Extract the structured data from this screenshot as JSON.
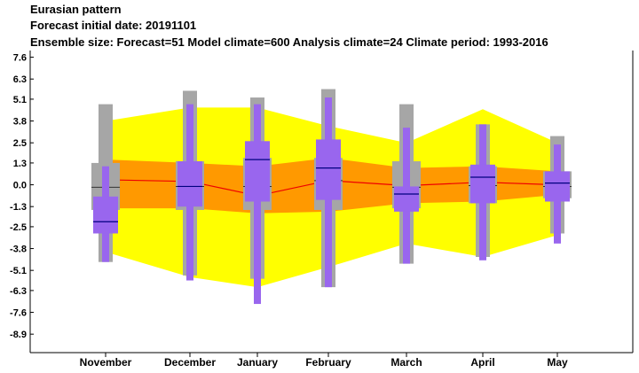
{
  "header": {
    "title": "Eurasian pattern",
    "init_line": " Forecast initial date: 20191101",
    "ensemble_line": "Ensemble size: Forecast=51 Model climate=600 Analysis climate=24   Climate period: 1993-2016"
  },
  "colors": {
    "clim_outer": "#ffff00",
    "clim_inner": "#ff9900",
    "model_whisker": "#a6a6a6",
    "forecast_box": "#9966ee",
    "median_line": "#000080",
    "clim_median_line": "#ee0000"
  },
  "chart_data": {
    "type": "box",
    "categories": [
      "November",
      "December",
      "January",
      "February",
      "March",
      "April",
      "May"
    ],
    "ylim": [
      -10.0,
      8.0
    ],
    "yticks": [
      "7.6",
      "6.3",
      "5.1",
      "3.8",
      "2.5",
      "1.3",
      "0.0",
      "-1.3",
      "-2.5",
      "-3.8",
      "-5.1",
      "-6.3",
      "-7.6",
      "-8.9"
    ],
    "model_climate": {
      "whisker_low": [
        -4.6,
        -5.4,
        -5.6,
        -6.1,
        -4.7,
        -4.3,
        -2.9
      ],
      "whisker_high": [
        4.8,
        5.6,
        5.2,
        5.7,
        4.8,
        3.6,
        2.9
      ],
      "box_low": [
        -1.5,
        -1.5,
        -1.5,
        -1.5,
        -1.4,
        -1.1,
        -0.8
      ],
      "box_high": [
        1.3,
        1.4,
        1.6,
        1.6,
        1.4,
        1.1,
        0.8
      ],
      "median": [
        -0.15,
        -0.1,
        -0.1,
        0.25,
        -0.15,
        -0.05,
        -0.1
      ]
    },
    "analysis_climate": {
      "outer_low": [
        -4.0,
        -5.5,
        -6.1,
        -4.9,
        -3.5,
        -4.3,
        -3.0
      ],
      "outer_high": [
        3.8,
        4.6,
        4.6,
        3.5,
        2.5,
        4.5,
        2.5
      ],
      "inner_low": [
        -1.4,
        -1.4,
        -1.7,
        -1.6,
        -1.1,
        -1.0,
        -0.6
      ],
      "inner_high": [
        1.5,
        1.3,
        1.1,
        1.6,
        1.0,
        1.1,
        0.8
      ],
      "median": [
        0.3,
        0.2,
        -0.65,
        0.25,
        -0.05,
        0.15,
        0.0
      ]
    },
    "forecast": {
      "whisker_low": [
        -4.6,
        -5.7,
        -7.1,
        -6.1,
        -4.7,
        -4.5,
        -3.5
      ],
      "whisker_high": [
        1.1,
        4.8,
        4.8,
        5.2,
        3.4,
        3.6,
        2.4
      ],
      "box_low": [
        -2.9,
        -1.3,
        -1.0,
        -0.9,
        -1.6,
        -1.1,
        -1.0
      ],
      "box_high": [
        -0.7,
        1.4,
        2.6,
        2.7,
        -0.1,
        1.2,
        0.8
      ],
      "median": [
        -2.2,
        -0.1,
        1.5,
        1.0,
        -0.55,
        0.45,
        0.1
      ]
    }
  }
}
